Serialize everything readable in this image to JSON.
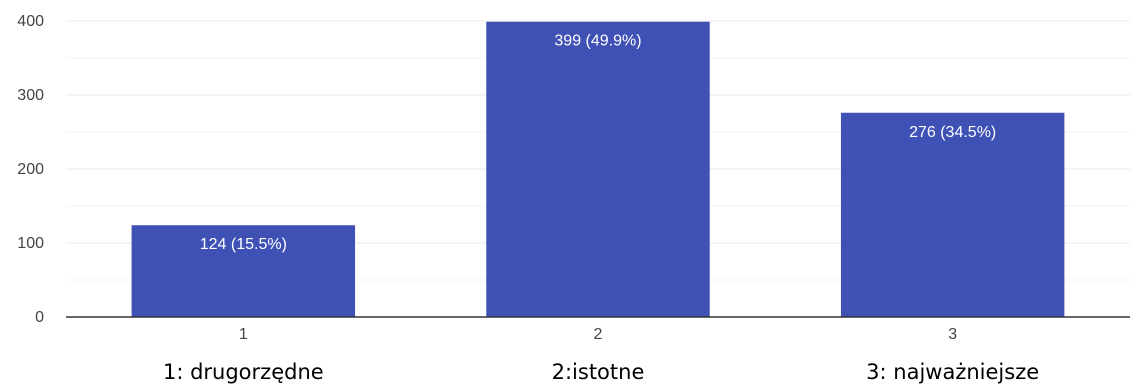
{
  "chart_data": {
    "type": "bar",
    "categories": [
      "1",
      "2",
      "3"
    ],
    "category_captions": [
      "1: drugorzędne",
      "2:istotne",
      "3: najważniejsze"
    ],
    "values": [
      124,
      399,
      276
    ],
    "data_labels": [
      "124 (15.5%)",
      "399 (49.9%)",
      "276 (34.5%)"
    ],
    "ylim": [
      0,
      400
    ],
    "yticks": [
      0,
      100,
      200,
      300,
      400
    ],
    "ytick_labels": [
      "0",
      "100",
      "200",
      "300",
      "400"
    ],
    "grid": true,
    "bar_color": "#3f51b5",
    "grid_color": "#e8e8e8",
    "axis_color": "#333333"
  }
}
